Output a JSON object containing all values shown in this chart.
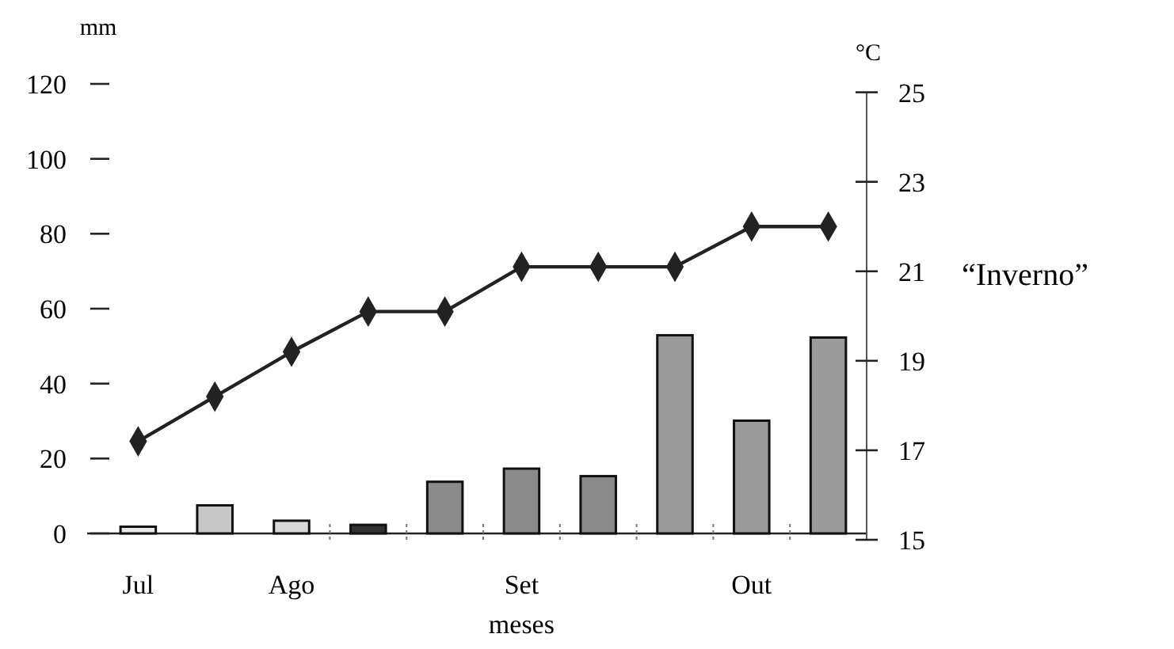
{
  "chart_data": {
    "type": "bar",
    "categories": [
      "Jul",
      null,
      "Ago",
      null,
      null,
      "Set",
      null,
      null,
      "Out",
      null
    ],
    "xlabel": "meses",
    "ylabel": "mm",
    "y2label": "°C",
    "annotations": [
      "“Inverno”"
    ],
    "series": [
      {
        "values": [
          1.8,
          7.5,
          3.4,
          2.3,
          13.8,
          17.3,
          15.3,
          52.9,
          30.1,
          52.3
        ],
        "colors": [
          "#e8e8e8",
          "#c8c8c8",
          "#d8d8d8",
          "#333333",
          "#8a8a8a",
          "#8a8a8a",
          "#8a8a8a",
          "#9a9a9a",
          "#9a9a9a",
          "#9a9a9a"
        ]
      },
      {
        "type": "line",
        "axis": "y2",
        "color": "#222222",
        "marker": "diamond",
        "line_style": "solid",
        "values": [
          17.2,
          18.2,
          19.2,
          20.1,
          20.1,
          21.1,
          21.1,
          21.1,
          22,
          22
        ]
      }
    ],
    "ylim": [
      0,
      120
    ],
    "yticks": [
      0,
      20,
      40,
      60,
      80,
      100,
      120
    ],
    "y2lim": [
      15,
      25
    ],
    "y2ticks": [
      15,
      17,
      19,
      21,
      23,
      25
    ],
    "grid": false
  }
}
